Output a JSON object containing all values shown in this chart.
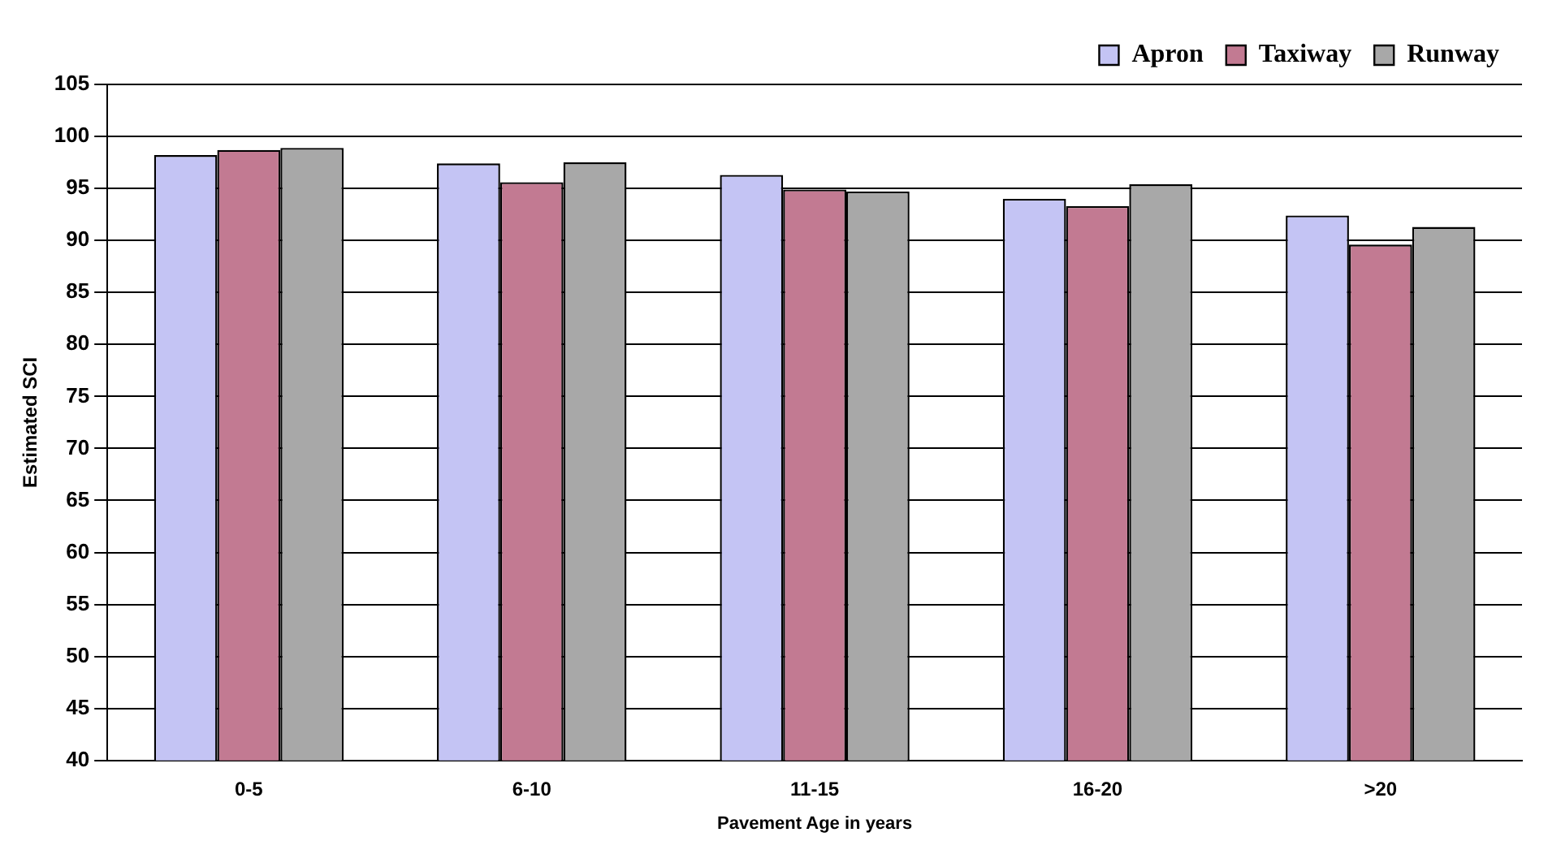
{
  "chart_data": {
    "type": "bar",
    "xlabel": "Pavement Age in years",
    "ylabel": "Estimated SCI",
    "categories": [
      "0-5",
      "6-10",
      "11-15",
      "16-20",
      ">20"
    ],
    "series": [
      {
        "name": "Apron",
        "color": "#c4c4f4",
        "values": [
          98.2,
          97.4,
          96.3,
          94.0,
          92.4
        ]
      },
      {
        "name": "Taxiway",
        "color": "#c27a92",
        "values": [
          98.7,
          95.6,
          94.9,
          93.3,
          89.6
        ]
      },
      {
        "name": "Runway",
        "color": "#a8a8a8",
        "values": [
          98.9,
          97.5,
          94.7,
          95.4,
          91.3
        ]
      }
    ],
    "ylim": [
      40,
      105
    ],
    "yticks": [
      40,
      45,
      50,
      55,
      60,
      65,
      70,
      75,
      80,
      85,
      90,
      95,
      100,
      105
    ],
    "grid": "y",
    "legend": "top right"
  }
}
